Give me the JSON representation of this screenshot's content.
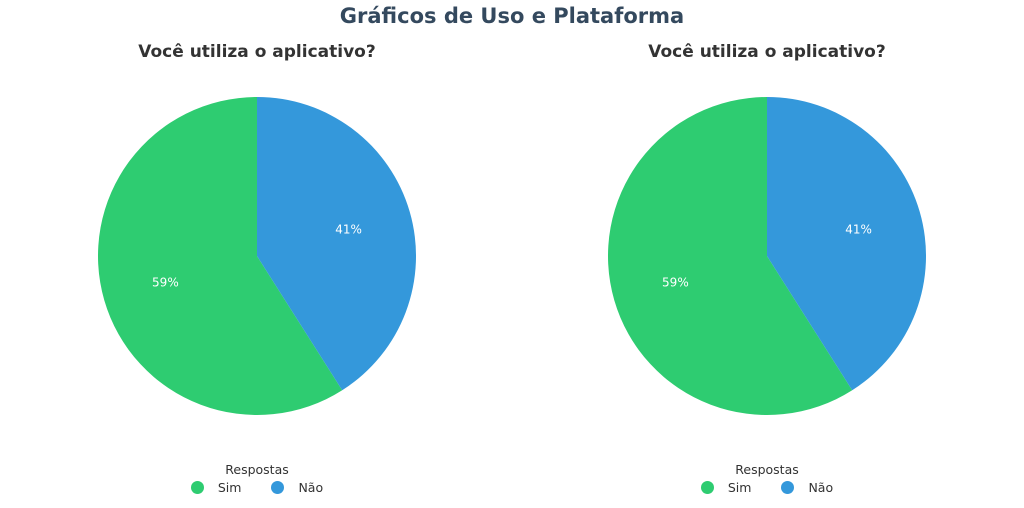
{
  "figure": {
    "title": "Gráficos de Uso e Plataforma"
  },
  "chart_data": [
    {
      "type": "pie",
      "title": "Você utiliza o aplicativo?",
      "categories": [
        "Sim",
        "Não"
      ],
      "values": [
        59,
        41
      ],
      "labels": [
        "59%",
        "41%"
      ],
      "colors": [
        "#2ecc71",
        "#3498db"
      ],
      "legend": {
        "title": "Respostas",
        "placement": "bottom-center",
        "items": [
          "Sim",
          "Não"
        ]
      }
    },
    {
      "type": "pie",
      "title": "Você utiliza o aplicativo?",
      "categories": [
        "Sim",
        "Não"
      ],
      "values": [
        59,
        41
      ],
      "labels": [
        "59%",
        "41%"
      ],
      "colors": [
        "#2ecc71",
        "#3498db"
      ],
      "legend": {
        "title": "Respostas",
        "placement": "bottom-center",
        "items": [
          "Sim",
          "Não"
        ]
      }
    }
  ]
}
